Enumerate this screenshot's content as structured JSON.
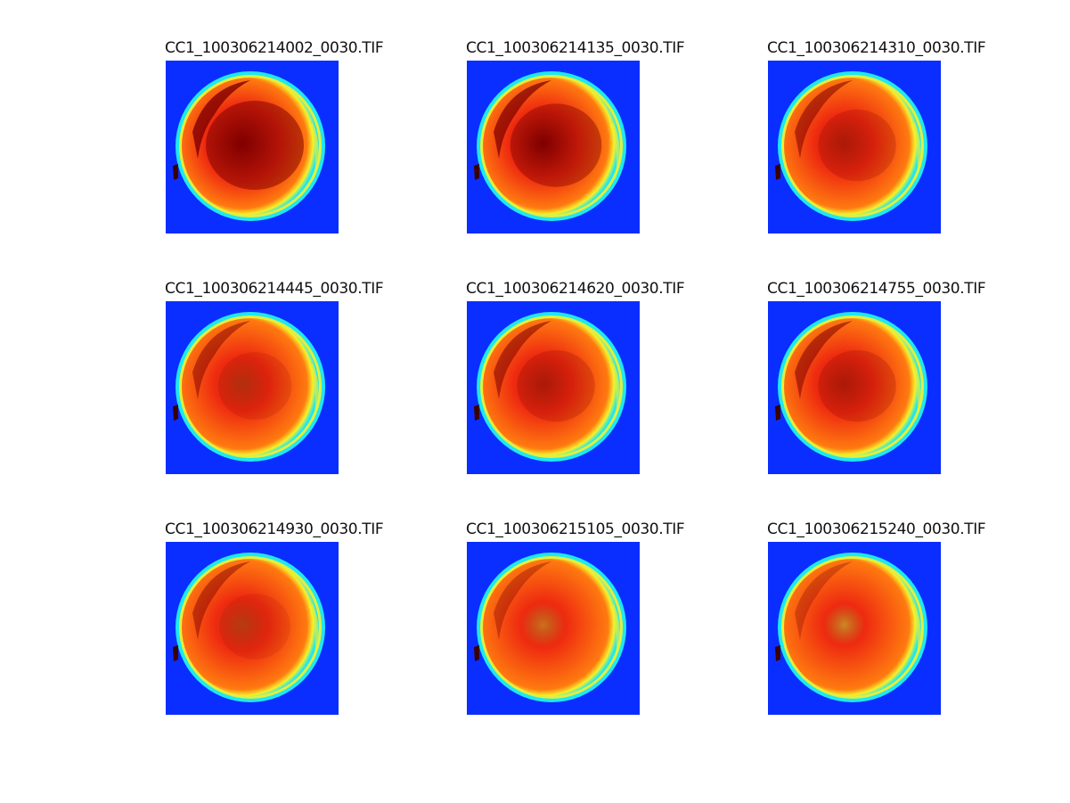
{
  "figure": {
    "panels": [
      {
        "title": "CC1_100306214002_0030.TIF",
        "darkness": 1.0
      },
      {
        "title": "CC1_100306214135_0030.TIF",
        "darkness": 0.85
      },
      {
        "title": "CC1_100306214310_0030.TIF",
        "darkness": 0.55
      },
      {
        "title": "CC1_100306214445_0030.TIF",
        "darkness": 0.45
      },
      {
        "title": "CC1_100306214620_0030.TIF",
        "darkness": 0.55
      },
      {
        "title": "CC1_100306214755_0030.TIF",
        "darkness": 0.55
      },
      {
        "title": "CC1_100306214930_0030.TIF",
        "darkness": 0.4
      },
      {
        "title": "CC1_100306215105_0030.TIF",
        "darkness": 0.2
      },
      {
        "title": "CC1_100306215240_0030.TIF",
        "darkness": 0.1
      }
    ],
    "colors": {
      "background": "#0a2eff",
      "rim_cyan": "#1ee8f0",
      "rim_yellow": "#f7f02a",
      "body_orange": "#ff7a10",
      "body_red": "#ee2a10",
      "core_darkred": "#7f0000"
    }
  }
}
